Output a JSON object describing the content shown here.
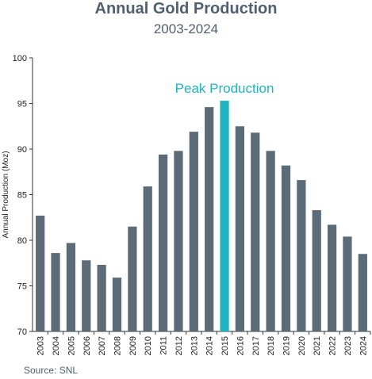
{
  "chart_data": {
    "type": "bar",
    "title": "Annual Gold Production",
    "subtitle": "2003-2024",
    "ylabel": "Annual Production (Moz)",
    "xlabel": "",
    "ylim": [
      70,
      100
    ],
    "yticks": [
      70,
      75,
      80,
      85,
      90,
      95,
      100
    ],
    "categories": [
      "2003",
      "2004",
      "2005",
      "2006",
      "2007",
      "2008",
      "2009",
      "2010",
      "2011",
      "2012",
      "2013",
      "2014",
      "2015",
      "2016",
      "2017",
      "2018",
      "2019",
      "2020",
      "2021",
      "2022",
      "2023",
      "2024"
    ],
    "values": [
      82.7,
      78.6,
      79.7,
      77.8,
      77.3,
      75.9,
      81.5,
      85.9,
      89.4,
      89.8,
      91.9,
      94.6,
      95.3,
      92.5,
      91.8,
      89.8,
      88.2,
      86.6,
      83.3,
      81.7,
      80.4,
      78.5
    ],
    "highlight_index": 12,
    "annotation": "Peak Production",
    "grid": false,
    "legend": "none",
    "source": "Source:  SNL"
  },
  "colors": {
    "bar": "#5c6b78",
    "highlight": "#1fb4c0",
    "axis": "#333333",
    "title": "#50606e"
  }
}
